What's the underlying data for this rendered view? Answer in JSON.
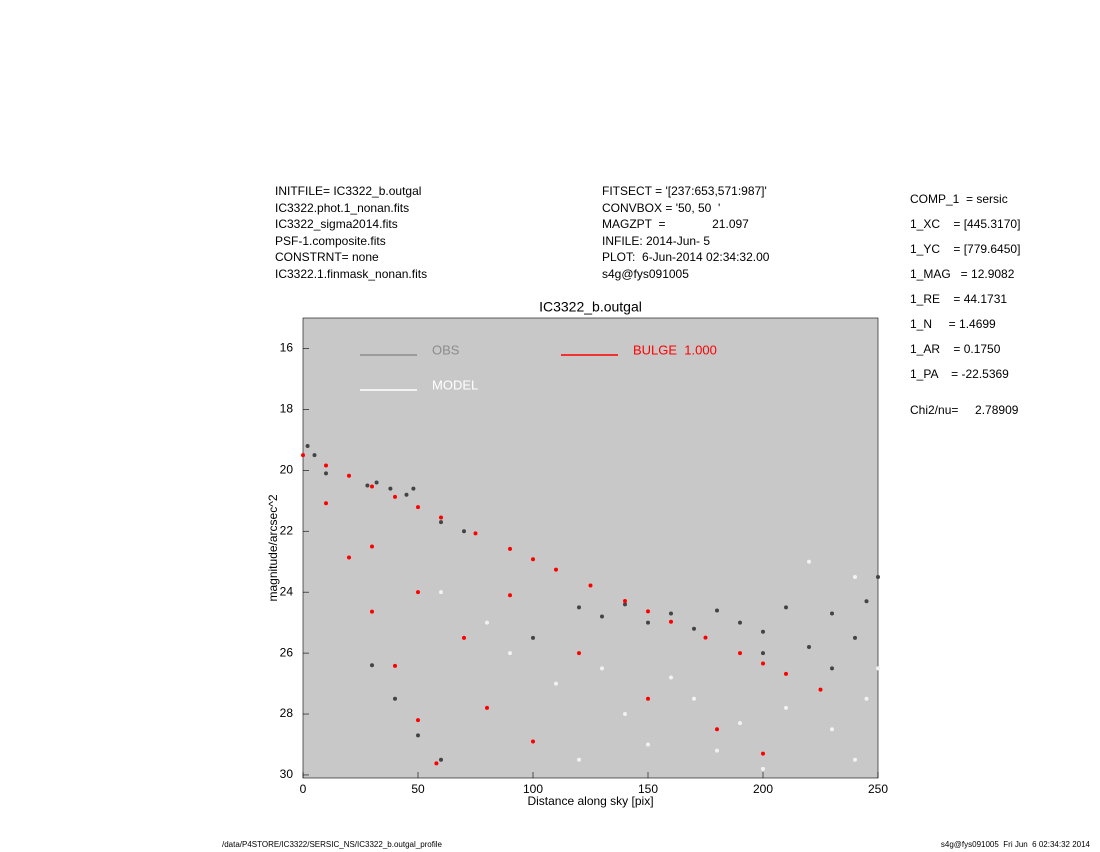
{
  "header": {
    "left": [
      "INITFILE= IC3322_b.outgal",
      "IC3322.phot.1_nonan.fits",
      "IC3322_sigma2014.fits",
      "PSF-1.composite.fits",
      "CONSTRNT= none",
      "IC3322.1.finmask_nonan.fits"
    ],
    "middle": [
      "FITSECT = '[237:653,571:987]'",
      "CONVBOX = '50, 50  '",
      "MAGZPT  =              21.097",
      "INFILE: 2014-Jun- 5",
      "PLOT:  6-Jun-2014 02:34:32.00",
      "s4g@fys091005"
    ],
    "params": [
      "COMP_1  = sersic",
      "1_XC    = [445.3170]",
      "1_YC    = [779.6450]",
      "1_MAG   = 12.9082",
      "1_RE    = 44.1731",
      "1_N     = 1.4699",
      "1_AR    = 0.1750",
      "1_PA    = -22.5369"
    ],
    "chi2": "Chi2/nu=     2.78909"
  },
  "chart_data": {
    "type": "scatter",
    "title": "IC3322_b.outgal",
    "x_label": "Distance along sky [pix]",
    "y_label": "magnitude/arcsec^2",
    "xlim": [
      0,
      250
    ],
    "xticks": [
      0,
      50,
      100,
      150,
      200,
      250
    ],
    "ylim": [
      15,
      30.1
    ],
    "y_inverted": true,
    "yticks": [
      16,
      18,
      20,
      22,
      24,
      26,
      28,
      30
    ],
    "background": "#c8c8c8",
    "series": [
      {
        "name": "OBS",
        "color": "#8c8c8c",
        "marker_color": "#444444",
        "x": [
          2,
          5,
          10,
          28,
          32,
          38,
          45,
          48,
          60,
          70,
          30,
          40,
          50,
          60,
          120,
          130,
          140,
          150,
          160,
          170,
          180,
          190,
          200,
          210,
          220,
          230,
          240,
          245,
          250,
          200,
          230,
          100
        ],
        "values": [
          19.2,
          19.5,
          20.1,
          20.5,
          20.4,
          20.6,
          20.8,
          20.6,
          21.7,
          22.0,
          26.4,
          27.5,
          28.7,
          29.5,
          24.5,
          24.8,
          24.4,
          25.0,
          24.7,
          25.2,
          24.6,
          25.0,
          25.3,
          24.5,
          25.8,
          24.7,
          25.5,
          24.3,
          23.5,
          26.0,
          26.5,
          25.5
        ]
      },
      {
        "name": "MODEL",
        "color": "#ffffff",
        "marker_color": "#f2f2f2",
        "x": [
          60,
          90,
          110,
          140,
          170,
          190,
          210,
          230,
          240,
          245,
          220,
          240,
          180,
          120,
          200,
          150,
          160,
          80,
          130,
          250
        ],
        "values": [
          24.0,
          26.0,
          27.0,
          28.0,
          27.5,
          28.3,
          27.8,
          28.5,
          29.5,
          27.5,
          23.0,
          23.5,
          29.2,
          29.5,
          29.8,
          29.0,
          26.8,
          25.0,
          26.5,
          26.5
        ]
      },
      {
        "name": "BULGE  1.000",
        "color": "#ff0000",
        "marker_color": "#ff0000",
        "x": [
          0,
          10,
          20,
          30,
          40,
          50,
          60,
          75,
          90,
          100,
          110,
          125,
          140,
          150,
          160,
          175,
          190,
          200,
          210,
          225,
          10,
          20,
          30,
          40,
          50,
          58,
          30,
          50,
          70,
          90,
          120,
          150,
          180,
          200,
          80,
          100
        ],
        "values": [
          19.5,
          19.84,
          20.18,
          20.53,
          20.87,
          21.21,
          21.55,
          22.07,
          22.58,
          22.92,
          23.26,
          23.78,
          24.29,
          24.63,
          24.97,
          25.49,
          26.0,
          26.34,
          26.68,
          27.2,
          21.08,
          22.86,
          24.64,
          26.42,
          28.2,
          29.62,
          22.5,
          24.0,
          25.5,
          24.1,
          26.0,
          27.5,
          28.5,
          29.3,
          27.8,
          28.9
        ]
      }
    ]
  },
  "footer": {
    "left": "/data/P4STORE/IC3322/SERSIC_NS/IC3322_b.outgal_profile",
    "right": "s4g@fys091005  Fri Jun  6 02:34:32 2014"
  }
}
